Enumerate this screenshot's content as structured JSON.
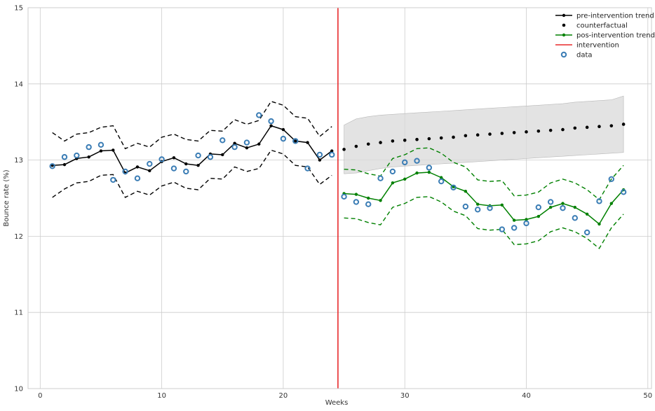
{
  "chart_data": {
    "type": "line",
    "title": "",
    "xlabel": "Weeks",
    "ylabel": "Bounce rate (%)",
    "xlim": [
      -1,
      50.3
    ],
    "ylim": [
      10,
      15
    ],
    "x_ticks": [
      0,
      10,
      20,
      30,
      40,
      50
    ],
    "y_ticks": [
      10,
      11,
      12,
      13,
      14,
      15
    ],
    "grid": true,
    "legend_position": "top-right",
    "intervention_x": 24.5,
    "colors": {
      "pre": "#000000",
      "counterfactual": "#000000",
      "post": "#008000",
      "intervention": "#e8292a",
      "data": "#3b7db5",
      "band": "#d9d9d9",
      "grid": "#cccccc"
    },
    "legend": [
      {
        "label": "pre-intervention trend",
        "key": "pre"
      },
      {
        "label": "counterfactual",
        "key": "counterfactual"
      },
      {
        "label": "pos-intervention trend",
        "key": "post"
      },
      {
        "label": "intervention",
        "key": "intervention"
      },
      {
        "label": "data",
        "key": "data"
      }
    ],
    "series": {
      "pre_trend": {
        "x": [
          1,
          2,
          3,
          4,
          5,
          6,
          7,
          8,
          9,
          10,
          11,
          12,
          13,
          14,
          15,
          16,
          17,
          18,
          19,
          20,
          21,
          22,
          23,
          24
        ],
        "y": [
          12.93,
          12.94,
          13.02,
          13.04,
          13.12,
          13.13,
          12.83,
          12.91,
          12.86,
          12.98,
          13.03,
          12.95,
          12.93,
          13.08,
          13.07,
          13.22,
          13.16,
          13.21,
          13.45,
          13.4,
          13.25,
          13.23,
          13.0,
          13.12
        ],
        "upper": [
          13.36,
          13.25,
          13.34,
          13.36,
          13.43,
          13.45,
          13.15,
          13.22,
          13.17,
          13.3,
          13.34,
          13.27,
          13.25,
          13.39,
          13.38,
          13.53,
          13.47,
          13.52,
          13.77,
          13.72,
          13.57,
          13.55,
          13.31,
          13.44
        ],
        "lower": [
          12.51,
          12.62,
          12.7,
          12.72,
          12.8,
          12.81,
          12.51,
          12.59,
          12.54,
          12.66,
          12.71,
          12.63,
          12.61,
          12.76,
          12.75,
          12.91,
          12.85,
          12.89,
          13.13,
          13.08,
          12.93,
          12.91,
          12.68,
          12.8
        ]
      },
      "counterfactual": {
        "x": [
          25,
          26,
          27,
          28,
          29,
          30,
          31,
          32,
          33,
          34,
          35,
          36,
          37,
          38,
          39,
          40,
          41,
          42,
          43,
          44,
          45,
          46,
          47,
          48
        ],
        "y": [
          13.14,
          13.18,
          13.21,
          13.23,
          13.25,
          13.26,
          13.27,
          13.28,
          13.29,
          13.3,
          13.32,
          13.33,
          13.34,
          13.35,
          13.36,
          13.37,
          13.38,
          13.39,
          13.4,
          13.42,
          13.43,
          13.44,
          13.45,
          13.47
        ],
        "upper": [
          13.46,
          13.54,
          13.57,
          13.59,
          13.6,
          13.61,
          13.62,
          13.63,
          13.64,
          13.65,
          13.66,
          13.67,
          13.68,
          13.69,
          13.7,
          13.71,
          13.72,
          13.73,
          13.74,
          13.76,
          13.77,
          13.78,
          13.79,
          13.84
        ],
        "lower": [
          12.82,
          12.83,
          12.86,
          12.89,
          12.91,
          12.92,
          12.93,
          12.94,
          12.95,
          12.96,
          12.97,
          12.98,
          12.99,
          13.0,
          13.01,
          13.02,
          13.03,
          13.04,
          13.05,
          13.06,
          13.07,
          13.08,
          13.09,
          13.1
        ]
      },
      "post_trend": {
        "x": [
          25,
          26,
          27,
          28,
          29,
          30,
          31,
          32,
          33,
          34,
          35,
          36,
          37,
          38,
          39,
          40,
          41,
          42,
          43,
          44,
          45,
          46,
          47,
          48
        ],
        "y": [
          12.56,
          12.55,
          12.5,
          12.47,
          12.7,
          12.75,
          12.83,
          12.84,
          12.77,
          12.65,
          12.59,
          12.42,
          12.4,
          12.41,
          12.21,
          12.22,
          12.26,
          12.38,
          12.43,
          12.38,
          12.29,
          12.16,
          12.43,
          12.61
        ],
        "upper": [
          12.88,
          12.87,
          12.82,
          12.79,
          13.02,
          13.07,
          13.15,
          13.16,
          13.09,
          12.97,
          12.91,
          12.74,
          12.72,
          12.73,
          12.53,
          12.54,
          12.58,
          12.7,
          12.75,
          12.7,
          12.61,
          12.48,
          12.75,
          12.93
        ],
        "lower": [
          12.24,
          12.23,
          12.18,
          12.15,
          12.38,
          12.43,
          12.51,
          12.52,
          12.45,
          12.33,
          12.27,
          12.1,
          12.08,
          12.09,
          11.89,
          11.9,
          11.94,
          12.06,
          12.11,
          12.06,
          11.97,
          11.84,
          12.11,
          12.29
        ]
      },
      "data": {
        "x": [
          1,
          2,
          3,
          4,
          5,
          6,
          7,
          8,
          9,
          10,
          11,
          12,
          13,
          14,
          15,
          16,
          17,
          18,
          19,
          20,
          21,
          22,
          23,
          24,
          25,
          26,
          27,
          28,
          29,
          30,
          31,
          32,
          33,
          34,
          35,
          36,
          37,
          38,
          39,
          40,
          41,
          42,
          43,
          44,
          45,
          46,
          47,
          48
        ],
        "y": [
          12.92,
          13.04,
          13.06,
          13.17,
          13.2,
          12.74,
          12.85,
          12.76,
          12.95,
          13.01,
          12.89,
          12.85,
          13.06,
          13.04,
          13.26,
          13.17,
          13.23,
          13.59,
          13.51,
          13.28,
          13.25,
          12.89,
          13.07,
          13.07,
          12.52,
          12.45,
          12.42,
          12.76,
          12.85,
          12.97,
          12.99,
          12.9,
          12.72,
          12.64,
          12.39,
          12.35,
          12.37,
          12.09,
          12.11,
          12.17,
          12.38,
          12.45,
          12.37,
          12.24,
          12.05,
          12.46,
          12.75,
          12.58
        ]
      }
    }
  }
}
